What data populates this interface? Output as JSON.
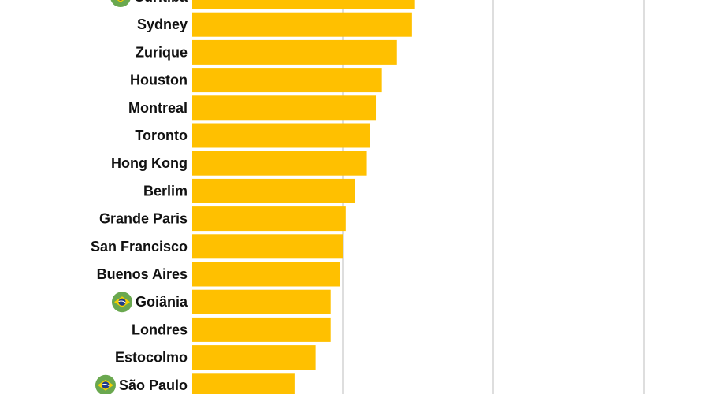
{
  "chart_data": {
    "type": "bar",
    "orientation": "horizontal",
    "categories": [
      {
        "label": "Curitiba",
        "flag": "brazil-flag-icon"
      },
      {
        "label": "Sydney",
        "flag": null
      },
      {
        "label": "Zurique",
        "flag": null
      },
      {
        "label": "Houston",
        "flag": null
      },
      {
        "label": "Montreal",
        "flag": null
      },
      {
        "label": "Toronto",
        "flag": null
      },
      {
        "label": "Hong Kong",
        "flag": null
      },
      {
        "label": "Berlim",
        "flag": null
      },
      {
        "label": "Grande Paris",
        "flag": null
      },
      {
        "label": "San Francisco",
        "flag": null
      },
      {
        "label": "Buenos Aires",
        "flag": null
      },
      {
        "label": "Goiânia",
        "flag": "brazil-flag-icon"
      },
      {
        "label": "Londres",
        "flag": null
      },
      {
        "label": "Estocolmo",
        "flag": null
      },
      {
        "label": "São Paulo",
        "flag": "brazil-flag-icon"
      }
    ],
    "values": [
      14.8,
      14.6,
      13.6,
      12.6,
      12.2,
      11.8,
      11.6,
      10.8,
      10.2,
      10.0,
      9.8,
      9.2,
      9.2,
      8.2,
      6.8
    ],
    "xlim": [
      0,
      30
    ],
    "gridlines_at": [
      10,
      20,
      30
    ],
    "grid": true,
    "title": "",
    "xlabel": "",
    "ylabel": ""
  },
  "colors": {
    "bar": "#FFC000",
    "grid": "#C8C8C8",
    "label": "#111111",
    "flag_green": "#6AA84F",
    "flag_yellow": "#F5D000",
    "flag_blue": "#1F3C88"
  }
}
